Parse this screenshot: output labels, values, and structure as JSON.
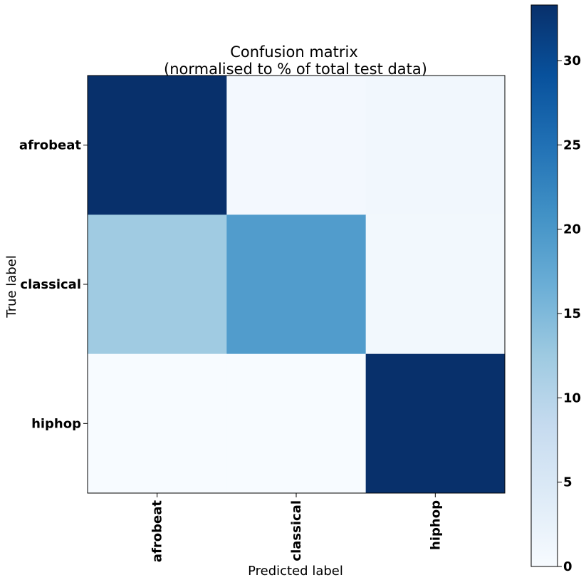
{
  "chart_data": {
    "type": "heatmap",
    "title_lines": [
      "Confusion matrix",
      "(normalised to % of total test data)"
    ],
    "xlabel": "Predicted label",
    "ylabel": "True label",
    "x_categories": [
      "afrobeat",
      "classical",
      "hiphop"
    ],
    "y_categories": [
      "afrobeat",
      "classical",
      "hiphop"
    ],
    "values": [
      [
        33.3,
        0.7,
        1.0
      ],
      [
        12.3,
        19.3,
        0.8
      ],
      [
        0.0,
        0.0,
        33.3
      ]
    ],
    "colormap": "Blues",
    "colorbar": {
      "min": 0,
      "max": 33.3,
      "ticks": [
        0,
        5,
        10,
        15,
        20,
        25,
        30
      ],
      "tick_labels": [
        "0",
        "5",
        "10",
        "15",
        "20",
        "25",
        "30"
      ]
    },
    "grid": false
  }
}
